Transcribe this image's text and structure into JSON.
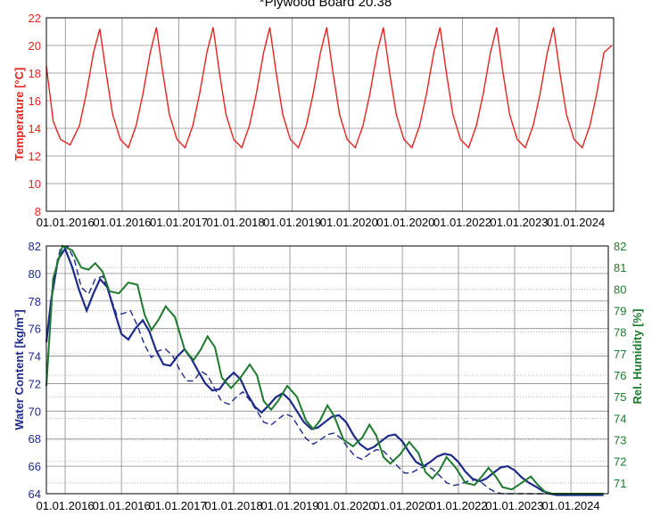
{
  "colors": {
    "temperature": "#e8231f",
    "water_content": "#1e2a8a",
    "water_content_dashed": "#1e2a8a",
    "rel_humidity": "#1d7a2e",
    "grid": "#8a8a8a",
    "frame": "#000000"
  },
  "chart_data": [
    {
      "id": "temperature-chart",
      "type": "line",
      "title": "*Plywood Board 20.38",
      "ylabel": "Temperature [°C]",
      "ylim": [
        8,
        22
      ],
      "yticks": [
        "8",
        "10",
        "12",
        "14",
        "16",
        "18",
        "20",
        "22"
      ],
      "xlim": [
        "2015-09-01",
        "2025-09-01"
      ],
      "xtick_labels": [
        "01.01.2016",
        "01.01.2016",
        "01.01.2017",
        "01.01.2018",
        "01.01.2019",
        "01.01.2020",
        "01.01.2020",
        "01.01.2022",
        "01.01.2023",
        "01.01.2024"
      ],
      "grid": true,
      "series": [
        {
          "x": [
            "2015-09-01",
            "2015-10-15",
            "2015-12-01",
            "2016-02-01",
            "2016-04-01",
            "2016-05-15",
            "2016-07-01",
            "2016-08-10",
            "2016-09-20",
            "2016-11-01",
            "2016-12-20",
            "2017-02-10",
            "2017-04-01",
            "2017-05-15",
            "2017-07-01",
            "2017-08-10",
            "2017-09-20",
            "2017-11-01",
            "2017-12-20",
            "2018-02-10",
            "2018-04-01",
            "2018-05-15",
            "2018-07-01",
            "2018-08-10",
            "2018-09-20",
            "2018-11-01",
            "2018-12-20",
            "2019-02-10",
            "2019-04-01",
            "2019-05-15",
            "2019-07-01",
            "2019-08-10",
            "2019-09-20",
            "2019-11-01",
            "2019-12-20",
            "2020-02-10",
            "2020-04-01",
            "2020-05-15",
            "2020-07-01",
            "2020-08-10",
            "2020-09-20",
            "2020-11-01",
            "2020-12-20",
            "2021-02-10",
            "2021-04-01",
            "2021-05-15",
            "2021-07-01",
            "2021-08-10",
            "2021-09-20",
            "2021-11-01",
            "2021-12-20",
            "2022-02-10",
            "2022-04-01",
            "2022-05-15",
            "2022-07-01",
            "2022-08-10",
            "2022-09-20",
            "2022-11-01",
            "2022-12-20",
            "2023-02-10",
            "2023-04-01",
            "2023-05-15",
            "2023-07-01",
            "2023-08-10",
            "2023-09-20",
            "2023-11-01",
            "2023-12-20",
            "2024-02-10",
            "2024-04-01",
            "2024-05-15",
            "2024-07-01",
            "2024-08-10",
            "2024-09-20",
            "2024-11-01",
            "2024-12-20",
            "2025-02-10",
            "2025-04-01",
            "2025-05-15",
            "2025-07-01",
            "2025-08-20"
          ],
          "y": [
            18.5,
            14.5,
            13.2,
            12.8,
            14.2,
            16.5,
            19.5,
            21.2,
            18.0,
            15.0,
            13.2,
            12.6,
            14.2,
            16.5,
            19.5,
            21.3,
            18.0,
            15.0,
            13.2,
            12.6,
            14.2,
            16.5,
            19.5,
            21.3,
            18.0,
            15.0,
            13.2,
            12.6,
            14.2,
            16.5,
            19.5,
            21.3,
            18.0,
            15.0,
            13.2,
            12.6,
            14.2,
            16.5,
            19.5,
            21.3,
            18.0,
            15.0,
            13.2,
            12.6,
            14.2,
            16.5,
            19.5,
            21.3,
            18.0,
            15.0,
            13.2,
            12.6,
            14.2,
            16.5,
            19.5,
            21.3,
            18.0,
            15.0,
            13.2,
            12.6,
            14.2,
            16.5,
            19.5,
            21.3,
            18.0,
            15.0,
            13.2,
            12.6,
            14.2,
            16.5,
            19.5,
            21.3,
            18.0,
            15.0,
            13.2,
            12.6,
            14.2,
            16.5,
            19.5,
            20.0
          ]
        }
      ]
    },
    {
      "id": "moisture-chart",
      "type": "line",
      "ylabel": "Water Content [kg/m³]",
      "ylabel_right": "Rel. Humidity [%]",
      "ylim": [
        64,
        82
      ],
      "ylim_right": [
        70.5,
        82
      ],
      "yticks": [
        "64",
        "66",
        "68",
        "70",
        "72",
        "74",
        "76",
        "78",
        "80",
        "82"
      ],
      "yticks_right": [
        "71",
        "72",
        "73",
        "74",
        "75",
        "76",
        "77",
        "78",
        "79",
        "80",
        "81",
        "82"
      ],
      "xlim": [
        "2015-09-01",
        "2025-09-01"
      ],
      "xtick_labels": [
        "01.01.2016",
        "01.01.2016",
        "01.01.2017",
        "01.01.2018",
        "01.01.2019",
        "01.01.2020",
        "01.01.2020",
        "01.01.2022",
        "01.01.2023",
        "01.01.2024"
      ],
      "grid": true,
      "series": [
        {
          "axis": "left",
          "style": "solid",
          "x": [
            "2015-09-01",
            "2015-10-01",
            "2015-11-15",
            "2016-01-01",
            "2016-02-15",
            "2016-04-01",
            "2016-05-20",
            "2016-07-01",
            "2016-08-15",
            "2016-10-01",
            "2016-11-15",
            "2017-01-01",
            "2017-02-15",
            "2017-04-01",
            "2017-05-20",
            "2017-07-01",
            "2017-08-15",
            "2017-10-01",
            "2017-11-15",
            "2018-01-01",
            "2018-02-15",
            "2018-04-01",
            "2018-05-20",
            "2018-07-01",
            "2018-08-15",
            "2018-10-01",
            "2018-11-15",
            "2019-01-01",
            "2019-02-15",
            "2019-04-01",
            "2019-05-20",
            "2019-07-01",
            "2019-08-15",
            "2019-10-01",
            "2019-11-15",
            "2020-01-01",
            "2020-02-15",
            "2020-04-01",
            "2020-05-20",
            "2020-07-01",
            "2020-08-15",
            "2020-10-01",
            "2020-11-15",
            "2021-01-01",
            "2021-02-15",
            "2021-04-01",
            "2021-05-20",
            "2021-07-01",
            "2021-08-15",
            "2021-10-01",
            "2021-11-15",
            "2022-01-01",
            "2022-02-15",
            "2022-04-01",
            "2022-05-20",
            "2022-07-01",
            "2022-08-15",
            "2022-10-01",
            "2022-11-15",
            "2023-01-01",
            "2023-02-15",
            "2023-04-01",
            "2023-05-20",
            "2023-07-01",
            "2023-08-15",
            "2023-10-01",
            "2023-11-15",
            "2024-01-01",
            "2024-02-15",
            "2024-04-01",
            "2024-05-20",
            "2024-07-01",
            "2024-08-15",
            "2024-10-01",
            "2024-11-15",
            "2025-01-01",
            "2025-02-15",
            "2025-04-01",
            "2025-06-01",
            "2025-08-01"
          ],
          "y": [
            75.0,
            78.0,
            81.0,
            81.8,
            80.5,
            78.8,
            77.3,
            78.5,
            79.6,
            79.0,
            77.3,
            75.6,
            75.2,
            76.0,
            76.6,
            75.8,
            74.4,
            73.4,
            73.3,
            74.0,
            74.5,
            73.8,
            72.8,
            72.0,
            71.5,
            71.6,
            72.3,
            72.8,
            72.3,
            71.2,
            70.3,
            69.9,
            70.4,
            71.0,
            71.3,
            70.8,
            70.0,
            69.2,
            68.7,
            68.8,
            69.2,
            69.6,
            69.7,
            69.2,
            68.3,
            67.6,
            67.2,
            67.4,
            67.8,
            68.2,
            68.3,
            67.8,
            67.0,
            66.3,
            66.0,
            66.3,
            66.7,
            66.9,
            66.8,
            66.3,
            65.6,
            65.1,
            64.9,
            65.1,
            65.5,
            65.9,
            66.0,
            65.7,
            65.2,
            64.8,
            64.5,
            64.2,
            64.0,
            63.9,
            63.9,
            63.9,
            63.9,
            63.9,
            63.9,
            63.9
          ]
        },
        {
          "axis": "left",
          "style": "dashed",
          "x": [
            "2015-09-01",
            "2015-10-15",
            "2015-12-01",
            "2016-01-15",
            "2016-03-01",
            "2016-04-15",
            "2016-06-01",
            "2016-07-15",
            "2016-09-01",
            "2016-10-15",
            "2016-12-01",
            "2017-01-15",
            "2017-03-01",
            "2017-04-15",
            "2017-06-01",
            "2017-07-15",
            "2017-09-01",
            "2017-10-15",
            "2017-12-01",
            "2018-01-15",
            "2018-03-01",
            "2018-04-15",
            "2018-06-01",
            "2018-07-15",
            "2018-09-01",
            "2018-10-15",
            "2018-12-01",
            "2019-01-15",
            "2019-03-01",
            "2019-04-15",
            "2019-06-01",
            "2019-07-15",
            "2019-09-01",
            "2019-10-15",
            "2019-12-01",
            "2020-01-15",
            "2020-03-01",
            "2020-04-15",
            "2020-06-01",
            "2020-07-15",
            "2020-09-01",
            "2020-10-15",
            "2020-12-01",
            "2021-01-15",
            "2021-03-01",
            "2021-04-15",
            "2021-06-01",
            "2021-07-15",
            "2021-09-01",
            "2021-10-15",
            "2021-12-01",
            "2022-01-15",
            "2022-03-01",
            "2022-04-15",
            "2022-06-01",
            "2022-07-15",
            "2022-09-01",
            "2022-10-15",
            "2022-12-01",
            "2023-01-15",
            "2023-03-01",
            "2023-04-15",
            "2023-06-01",
            "2023-07-15",
            "2023-09-01",
            "2023-10-15",
            "2023-12-01",
            "2024-01-15",
            "2024-03-01",
            "2024-04-15",
            "2024-06-01",
            "2024-07-15",
            "2024-09-01",
            "2024-10-15",
            "2024-12-01",
            "2025-01-15",
            "2025-03-01",
            "2025-04-15",
            "2025-06-01",
            "2025-08-01"
          ],
          "y": [
            75.0,
            79.5,
            81.8,
            82.0,
            81.0,
            79.0,
            78.5,
            79.6,
            79.8,
            78.5,
            77.0,
            77.1,
            77.3,
            76.2,
            74.8,
            73.9,
            74.4,
            74.5,
            74.0,
            73.0,
            72.2,
            72.2,
            72.9,
            72.6,
            71.6,
            70.7,
            70.5,
            71.0,
            71.4,
            70.8,
            70.0,
            69.2,
            69.0,
            69.4,
            69.8,
            69.6,
            68.8,
            68.0,
            67.6,
            67.9,
            68.3,
            68.4,
            68.0,
            67.3,
            66.7,
            66.5,
            66.9,
            67.2,
            67.1,
            66.6,
            66.0,
            65.5,
            65.5,
            65.8,
            66.0,
            65.8,
            65.3,
            64.8,
            64.6,
            64.7,
            64.9,
            65.0,
            64.8,
            64.4,
            64.1,
            64.0,
            64.0,
            64.0,
            64.0,
            64.0,
            64.0,
            64.0,
            64.0,
            64.0,
            64.0,
            64.0,
            64.0,
            64.0,
            64.0,
            64.0
          ]
        },
        {
          "axis": "right",
          "style": "solid",
          "x": [
            "2015-09-01",
            "2015-10-15",
            "2015-12-15",
            "2016-02-15",
            "2016-04-15",
            "2016-06-01",
            "2016-07-15",
            "2016-09-01",
            "2016-10-15",
            "2016-12-15",
            "2017-02-15",
            "2017-04-15",
            "2017-06-01",
            "2017-07-15",
            "2017-09-01",
            "2017-10-15",
            "2017-12-15",
            "2018-02-15",
            "2018-04-15",
            "2018-06-01",
            "2018-07-15",
            "2018-09-01",
            "2018-10-15",
            "2018-12-15",
            "2019-02-15",
            "2019-04-15",
            "2019-06-01",
            "2019-07-15",
            "2019-09-01",
            "2019-10-15",
            "2019-12-15",
            "2020-02-15",
            "2020-04-15",
            "2020-06-01",
            "2020-07-15",
            "2020-09-01",
            "2020-10-15",
            "2020-12-15",
            "2021-02-15",
            "2021-04-15",
            "2021-06-01",
            "2021-07-15",
            "2021-09-01",
            "2021-10-15",
            "2021-12-15",
            "2022-02-15",
            "2022-04-15",
            "2022-06-01",
            "2022-07-15",
            "2022-09-01",
            "2022-10-15",
            "2022-12-15",
            "2023-02-15",
            "2023-04-15",
            "2023-06-01",
            "2023-07-15",
            "2023-09-01",
            "2023-10-15",
            "2023-12-15",
            "2024-02-15",
            "2024-04-15",
            "2024-06-01",
            "2024-07-15",
            "2024-09-01",
            "2024-10-15",
            "2024-12-15",
            "2025-02-15",
            "2025-04-15",
            "2025-06-01",
            "2025-08-01"
          ],
          "y": [
            75.5,
            80.5,
            82.0,
            81.8,
            81.0,
            80.9,
            81.2,
            80.8,
            79.9,
            79.8,
            80.3,
            80.2,
            78.8,
            78.1,
            78.6,
            79.2,
            78.7,
            77.2,
            76.7,
            77.2,
            77.8,
            77.3,
            75.9,
            75.4,
            75.9,
            76.5,
            76.0,
            74.8,
            74.4,
            74.8,
            75.5,
            75.0,
            73.9,
            73.5,
            73.9,
            74.6,
            74.1,
            73.0,
            72.7,
            73.1,
            73.7,
            73.2,
            72.2,
            71.9,
            72.3,
            72.9,
            72.4,
            71.5,
            71.2,
            71.6,
            72.2,
            71.7,
            71.0,
            70.9,
            71.3,
            71.7,
            71.3,
            70.8,
            70.7,
            71.0,
            71.3,
            70.9,
            70.6,
            70.5,
            70.5,
            70.5,
            70.5,
            70.5,
            70.5,
            70.5
          ]
        }
      ]
    }
  ]
}
